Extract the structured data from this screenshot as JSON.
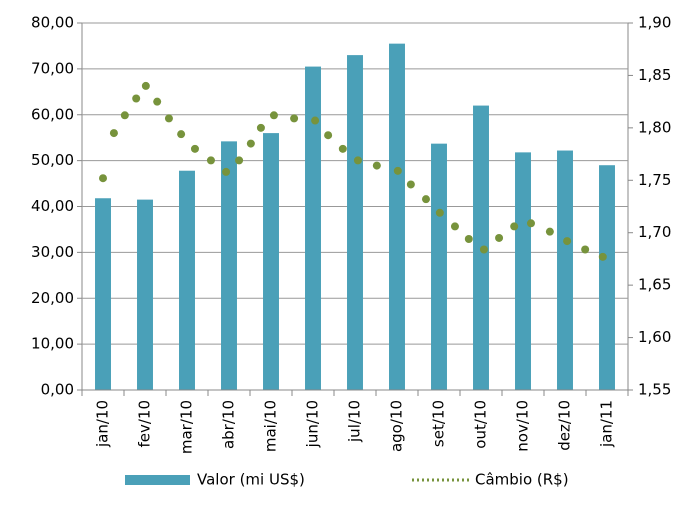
{
  "chart_data": {
    "type": "bar-line",
    "categories": [
      "jan/10",
      "fev/10",
      "mar/10",
      "abr/10",
      "mai/10",
      "jun/10",
      "jul/10",
      "ago/10",
      "set/10",
      "out/10",
      "nov/10",
      "dez/10",
      "jan/11"
    ],
    "series": [
      {
        "name": "Valor (mi US$)",
        "type": "bar",
        "color": "#4aa0b8",
        "values": [
          41.8,
          41.5,
          47.8,
          54.2,
          56.0,
          70.5,
          73.0,
          75.5,
          53.7,
          62.0,
          51.8,
          52.2,
          49.0
        ]
      },
      {
        "name": "Câmbio (R$)",
        "type": "line",
        "axis": "y2",
        "color": "#77933c",
        "x": [
          0,
          0.26,
          0.52,
          0.79,
          1.02,
          1.29,
          1.57,
          1.86,
          2.19,
          2.57,
          2.93,
          3.24,
          3.52,
          3.76,
          4.07,
          4.55,
          5.05,
          5.36,
          5.71,
          6.07,
          6.52,
          7.02,
          7.33,
          7.69,
          8.02,
          8.38,
          8.71,
          9.07,
          9.43,
          9.79,
          10.19,
          10.64,
          11.05,
          11.48,
          11.9
        ],
        "values": [
          1.752,
          1.795,
          1.812,
          1.828,
          1.84,
          1.825,
          1.809,
          1.794,
          1.78,
          1.769,
          1.758,
          1.769,
          1.785,
          1.8,
          1.812,
          1.809,
          1.807,
          1.793,
          1.78,
          1.769,
          1.764,
          1.759,
          1.746,
          1.732,
          1.719,
          1.706,
          1.694,
          1.684,
          1.695,
          1.706,
          1.709,
          1.701,
          1.692,
          1.684,
          1.677
        ]
      }
    ],
    "ylim": [
      0,
      80
    ],
    "yticks": [
      {
        "value": 0,
        "label": "0,00"
      },
      {
        "value": 10,
        "label": "10,00"
      },
      {
        "value": 20,
        "label": "20,00"
      },
      {
        "value": 30,
        "label": "30,00"
      },
      {
        "value": 40,
        "label": "40,00"
      },
      {
        "value": 50,
        "label": "50,00"
      },
      {
        "value": 60,
        "label": "60,00"
      },
      {
        "value": 70,
        "label": "70,00"
      },
      {
        "value": 80,
        "label": "80,00"
      }
    ],
    "y2lim": [
      1.55,
      1.9
    ],
    "y2ticks": [
      {
        "value": 1.55,
        "label": "1,55"
      },
      {
        "value": 1.6,
        "label": "1,60"
      },
      {
        "value": 1.65,
        "label": "1,65"
      },
      {
        "value": 1.7,
        "label": "1,70"
      },
      {
        "value": 1.75,
        "label": "1,75"
      },
      {
        "value": 1.8,
        "label": "1,80"
      },
      {
        "value": 1.85,
        "label": "1,85"
      },
      {
        "value": 1.9,
        "label": "1,90"
      }
    ],
    "grid": true,
    "legend": "bottom"
  }
}
